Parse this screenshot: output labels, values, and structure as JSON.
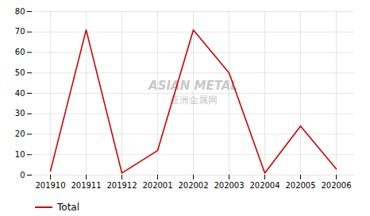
{
  "chart_data": {
    "type": "line",
    "categories": [
      "201910",
      "201911",
      "201912",
      "202001",
      "202002",
      "202003",
      "202004",
      "202005",
      "202006"
    ],
    "series": [
      {
        "name": "Total",
        "color": "#cc0000",
        "values": [
          2,
          71,
          1,
          12,
          71,
          50,
          1,
          24,
          3
        ]
      }
    ],
    "ylim": [
      0,
      80
    ],
    "yticks": [
      0,
      10,
      20,
      30,
      40,
      50,
      60,
      70,
      80
    ],
    "grid": true,
    "legend": "bottom",
    "annotations": [
      "ASIAN METAL",
      "亚洲金属网"
    ]
  }
}
